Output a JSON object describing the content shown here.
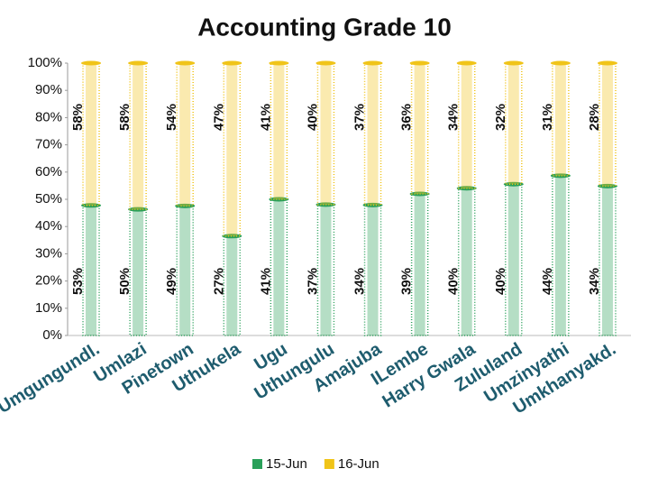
{
  "chart_data": {
    "type": "bar",
    "stacked": "percent",
    "title": "Accounting Grade 10",
    "categories": [
      "Umgungundl.",
      "Umlazi",
      "Pinetown",
      "Uthukela",
      "Ugu",
      "Uthungulu",
      "Amajuba",
      "ILembe",
      "Harry Gwala",
      "Zululand",
      "Umzinyathi",
      "Umkhanyakd."
    ],
    "series": [
      {
        "name": "15-Jun",
        "color": "#2aa05a",
        "values": [
          53,
          50,
          49,
          27,
          41,
          37,
          34,
          39,
          40,
          40,
          44,
          34
        ],
        "value_labels": [
          "53%",
          "50%",
          "49%",
          "27%",
          "41%",
          "37%",
          "34%",
          "39%",
          "40%",
          "40%",
          "44%",
          "34%"
        ]
      },
      {
        "name": "16-Jun",
        "color": "#f0c419",
        "values": [
          58,
          58,
          54,
          47,
          41,
          40,
          37,
          36,
          34,
          32,
          31,
          28
        ],
        "value_labels": [
          "58%",
          "58%",
          "54%",
          "47%",
          "41%",
          "40%",
          "37%",
          "36%",
          "34%",
          "32%",
          "31%",
          "28%"
        ]
      }
    ],
    "ylim": [
      0,
      100
    ],
    "yticks": [
      {
        "value": 0,
        "label": "0%"
      },
      {
        "value": 10,
        "label": "10%"
      },
      {
        "value": 20,
        "label": "20%"
      },
      {
        "value": 30,
        "label": "30%"
      },
      {
        "value": 40,
        "label": "40%"
      },
      {
        "value": 50,
        "label": "50%"
      },
      {
        "value": 60,
        "label": "60%"
      },
      {
        "value": 70,
        "label": "70%"
      },
      {
        "value": 80,
        "label": "80%"
      },
      {
        "value": 90,
        "label": "90%"
      },
      {
        "value": 100,
        "label": "100%"
      }
    ],
    "legend": "bottom"
  }
}
